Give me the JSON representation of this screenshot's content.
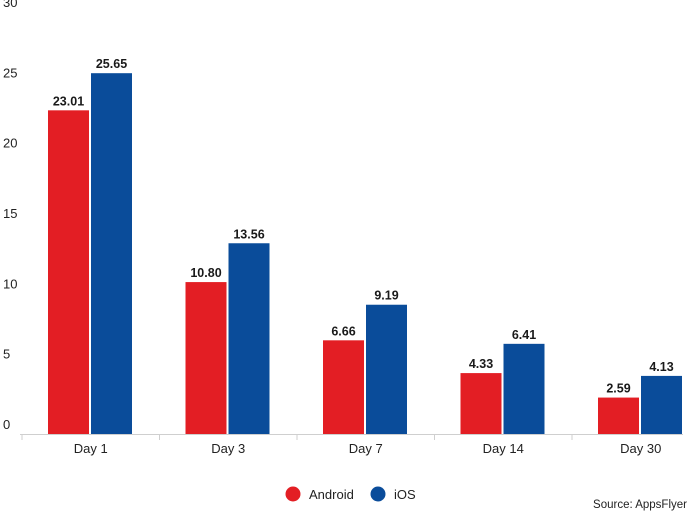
{
  "chart_data": {
    "type": "bar",
    "categories": [
      "Day 1",
      "Day 3",
      "Day 7",
      "Day 14",
      "Day 30"
    ],
    "series": [
      {
        "name": "Android",
        "color": "#e31e24",
        "values": [
          23.01,
          10.8,
          6.66,
          4.33,
          2.59
        ],
        "labels": [
          "23.01",
          "10.80",
          "6.66",
          "4.33",
          "2.59"
        ]
      },
      {
        "name": "iOS",
        "color": "#0a4c9a",
        "values": [
          25.65,
          13.56,
          9.19,
          6.41,
          4.13
        ],
        "labels": [
          "25.65",
          "13.56",
          "9.19",
          "6.41",
          "4.13"
        ]
      }
    ],
    "ylim": [
      0,
      30
    ],
    "yticks": [
      "0",
      "5",
      "10",
      "15",
      "20",
      "25",
      "30"
    ],
    "grid": false,
    "legend_position": "bottom-center",
    "source": "Source: AppsFlyer"
  }
}
